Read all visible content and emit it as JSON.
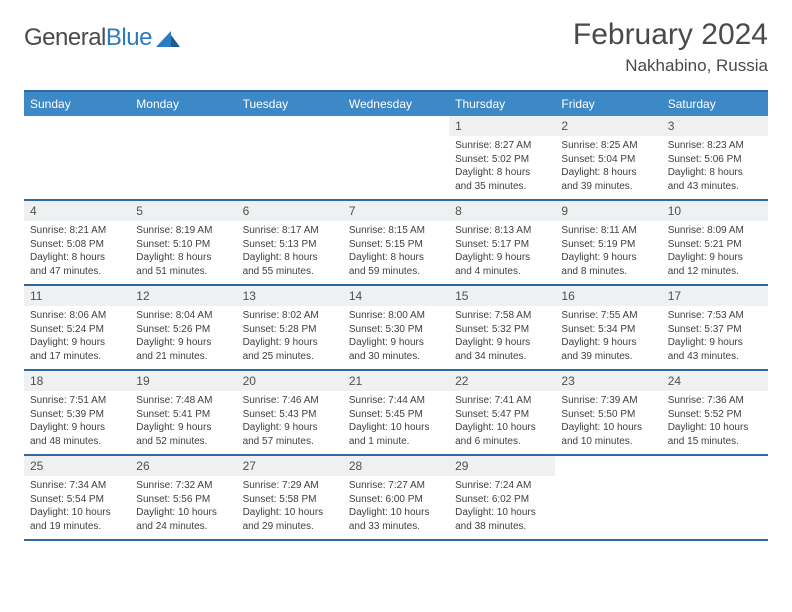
{
  "brand": {
    "text_general": "General",
    "text_blue": "Blue",
    "tri_color": "#2b7bbf"
  },
  "header": {
    "month": "February 2024",
    "location": "Nakhabino, Russia"
  },
  "colors": {
    "header_bg": "#3d88c7",
    "header_border": "#2e6aa0",
    "daynum_bg": "#eef0f2",
    "text": "#404040",
    "title": "#4a4a4a"
  },
  "weekdays": [
    "Sunday",
    "Monday",
    "Tuesday",
    "Wednesday",
    "Thursday",
    "Friday",
    "Saturday"
  ],
  "weeks": [
    [
      {
        "day": "",
        "sunrise": "",
        "sunset": "",
        "daylight": ""
      },
      {
        "day": "",
        "sunrise": "",
        "sunset": "",
        "daylight": ""
      },
      {
        "day": "",
        "sunrise": "",
        "sunset": "",
        "daylight": ""
      },
      {
        "day": "",
        "sunrise": "",
        "sunset": "",
        "daylight": ""
      },
      {
        "day": "1",
        "sunrise": "Sunrise: 8:27 AM",
        "sunset": "Sunset: 5:02 PM",
        "daylight": "Daylight: 8 hours and 35 minutes."
      },
      {
        "day": "2",
        "sunrise": "Sunrise: 8:25 AM",
        "sunset": "Sunset: 5:04 PM",
        "daylight": "Daylight: 8 hours and 39 minutes."
      },
      {
        "day": "3",
        "sunrise": "Sunrise: 8:23 AM",
        "sunset": "Sunset: 5:06 PM",
        "daylight": "Daylight: 8 hours and 43 minutes."
      }
    ],
    [
      {
        "day": "4",
        "sunrise": "Sunrise: 8:21 AM",
        "sunset": "Sunset: 5:08 PM",
        "daylight": "Daylight: 8 hours and 47 minutes."
      },
      {
        "day": "5",
        "sunrise": "Sunrise: 8:19 AM",
        "sunset": "Sunset: 5:10 PM",
        "daylight": "Daylight: 8 hours and 51 minutes."
      },
      {
        "day": "6",
        "sunrise": "Sunrise: 8:17 AM",
        "sunset": "Sunset: 5:13 PM",
        "daylight": "Daylight: 8 hours and 55 minutes."
      },
      {
        "day": "7",
        "sunrise": "Sunrise: 8:15 AM",
        "sunset": "Sunset: 5:15 PM",
        "daylight": "Daylight: 8 hours and 59 minutes."
      },
      {
        "day": "8",
        "sunrise": "Sunrise: 8:13 AM",
        "sunset": "Sunset: 5:17 PM",
        "daylight": "Daylight: 9 hours and 4 minutes."
      },
      {
        "day": "9",
        "sunrise": "Sunrise: 8:11 AM",
        "sunset": "Sunset: 5:19 PM",
        "daylight": "Daylight: 9 hours and 8 minutes."
      },
      {
        "day": "10",
        "sunrise": "Sunrise: 8:09 AM",
        "sunset": "Sunset: 5:21 PM",
        "daylight": "Daylight: 9 hours and 12 minutes."
      }
    ],
    [
      {
        "day": "11",
        "sunrise": "Sunrise: 8:06 AM",
        "sunset": "Sunset: 5:24 PM",
        "daylight": "Daylight: 9 hours and 17 minutes."
      },
      {
        "day": "12",
        "sunrise": "Sunrise: 8:04 AM",
        "sunset": "Sunset: 5:26 PM",
        "daylight": "Daylight: 9 hours and 21 minutes."
      },
      {
        "day": "13",
        "sunrise": "Sunrise: 8:02 AM",
        "sunset": "Sunset: 5:28 PM",
        "daylight": "Daylight: 9 hours and 25 minutes."
      },
      {
        "day": "14",
        "sunrise": "Sunrise: 8:00 AM",
        "sunset": "Sunset: 5:30 PM",
        "daylight": "Daylight: 9 hours and 30 minutes."
      },
      {
        "day": "15",
        "sunrise": "Sunrise: 7:58 AM",
        "sunset": "Sunset: 5:32 PM",
        "daylight": "Daylight: 9 hours and 34 minutes."
      },
      {
        "day": "16",
        "sunrise": "Sunrise: 7:55 AM",
        "sunset": "Sunset: 5:34 PM",
        "daylight": "Daylight: 9 hours and 39 minutes."
      },
      {
        "day": "17",
        "sunrise": "Sunrise: 7:53 AM",
        "sunset": "Sunset: 5:37 PM",
        "daylight": "Daylight: 9 hours and 43 minutes."
      }
    ],
    [
      {
        "day": "18",
        "sunrise": "Sunrise: 7:51 AM",
        "sunset": "Sunset: 5:39 PM",
        "daylight": "Daylight: 9 hours and 48 minutes."
      },
      {
        "day": "19",
        "sunrise": "Sunrise: 7:48 AM",
        "sunset": "Sunset: 5:41 PM",
        "daylight": "Daylight: 9 hours and 52 minutes."
      },
      {
        "day": "20",
        "sunrise": "Sunrise: 7:46 AM",
        "sunset": "Sunset: 5:43 PM",
        "daylight": "Daylight: 9 hours and 57 minutes."
      },
      {
        "day": "21",
        "sunrise": "Sunrise: 7:44 AM",
        "sunset": "Sunset: 5:45 PM",
        "daylight": "Daylight: 10 hours and 1 minute."
      },
      {
        "day": "22",
        "sunrise": "Sunrise: 7:41 AM",
        "sunset": "Sunset: 5:47 PM",
        "daylight": "Daylight: 10 hours and 6 minutes."
      },
      {
        "day": "23",
        "sunrise": "Sunrise: 7:39 AM",
        "sunset": "Sunset: 5:50 PM",
        "daylight": "Daylight: 10 hours and 10 minutes."
      },
      {
        "day": "24",
        "sunrise": "Sunrise: 7:36 AM",
        "sunset": "Sunset: 5:52 PM",
        "daylight": "Daylight: 10 hours and 15 minutes."
      }
    ],
    [
      {
        "day": "25",
        "sunrise": "Sunrise: 7:34 AM",
        "sunset": "Sunset: 5:54 PM",
        "daylight": "Daylight: 10 hours and 19 minutes."
      },
      {
        "day": "26",
        "sunrise": "Sunrise: 7:32 AM",
        "sunset": "Sunset: 5:56 PM",
        "daylight": "Daylight: 10 hours and 24 minutes."
      },
      {
        "day": "27",
        "sunrise": "Sunrise: 7:29 AM",
        "sunset": "Sunset: 5:58 PM",
        "daylight": "Daylight: 10 hours and 29 minutes."
      },
      {
        "day": "28",
        "sunrise": "Sunrise: 7:27 AM",
        "sunset": "Sunset: 6:00 PM",
        "daylight": "Daylight: 10 hours and 33 minutes."
      },
      {
        "day": "29",
        "sunrise": "Sunrise: 7:24 AM",
        "sunset": "Sunset: 6:02 PM",
        "daylight": "Daylight: 10 hours and 38 minutes."
      },
      {
        "day": "",
        "sunrise": "",
        "sunset": "",
        "daylight": ""
      },
      {
        "day": "",
        "sunrise": "",
        "sunset": "",
        "daylight": ""
      }
    ]
  ]
}
